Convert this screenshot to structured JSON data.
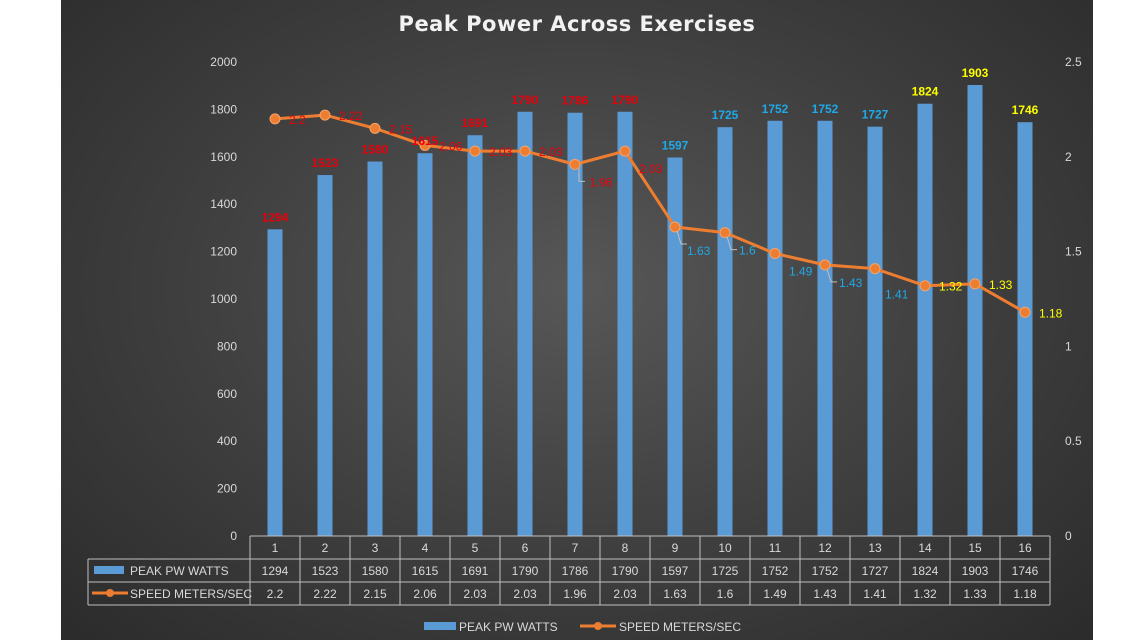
{
  "chart_data": {
    "type": "bar",
    "title": "Peak Power Across Exercises",
    "categories": [
      "1",
      "2",
      "3",
      "4",
      "5",
      "6",
      "7",
      "8",
      "9",
      "10",
      "11",
      "12",
      "13",
      "14",
      "15",
      "16"
    ],
    "series": [
      {
        "name": "PEAK PW WATTS",
        "type": "bar",
        "axis": "left",
        "color": "#5b9bd5",
        "values": [
          1294,
          1523,
          1580,
          1615,
          1691,
          1790,
          1786,
          1790,
          1597,
          1725,
          1752,
          1752,
          1727,
          1824,
          1903,
          1746
        ],
        "value_labels": [
          "1294",
          "1523",
          "1580",
          "1615",
          "1691",
          "1790",
          "1786",
          "1790",
          "1597",
          "1725",
          "1752",
          "1752",
          "1727",
          "1824",
          "1903",
          "1746"
        ],
        "label_colors": [
          "#e8000b",
          "#e8000b",
          "#e8000b",
          "#e8000b",
          "#e8000b",
          "#e8000b",
          "#e8000b",
          "#e8000b",
          "#1fa9e8",
          "#1fa9e8",
          "#1fa9e8",
          "#1fa9e8",
          "#1fa9e8",
          "#ffff00",
          "#ffff00",
          "#ffff00"
        ]
      },
      {
        "name": "SPEED METERS/SEC",
        "type": "line",
        "axis": "right",
        "color": "#ed7d31",
        "values": [
          2.2,
          2.22,
          2.15,
          2.06,
          2.03,
          2.03,
          1.96,
          2.03,
          1.63,
          1.6,
          1.49,
          1.43,
          1.41,
          1.32,
          1.33,
          1.18
        ],
        "value_labels": [
          "2.2",
          "2.22",
          "2.15",
          "2.06",
          "2.03",
          "2.03",
          "1.96",
          "2.03",
          "1.63",
          "1.6",
          "1.49",
          "1.43",
          "1.41",
          "1.32",
          "1.33",
          "1.18"
        ],
        "label_colors": [
          "#e8000b",
          "#e8000b",
          "#e8000b",
          "#e8000b",
          "#e8000b",
          "#e8000b",
          "#e8000b",
          "#e8000b",
          "#1fa9e8",
          "#1fa9e8",
          "#1fa9e8",
          "#1fa9e8",
          "#1fa9e8",
          "#ffff00",
          "#ffff00",
          "#ffff00"
        ]
      }
    ],
    "y_left": {
      "min": 0,
      "max": 2000,
      "ticks": [
        "0",
        "200",
        "400",
        "600",
        "800",
        "1000",
        "1200",
        "1400",
        "1600",
        "1800",
        "2000"
      ]
    },
    "y_right": {
      "min": 0,
      "max": 2.5,
      "ticks": [
        "0",
        "0.5",
        "1",
        "1.5",
        "2",
        "2.5"
      ]
    },
    "grid": false,
    "legend": "bottom",
    "data_table": true,
    "colors": {
      "background": "#3e3e3e",
      "axis_text": "#d9d9d9",
      "table_border": "#bfbfbf"
    }
  }
}
